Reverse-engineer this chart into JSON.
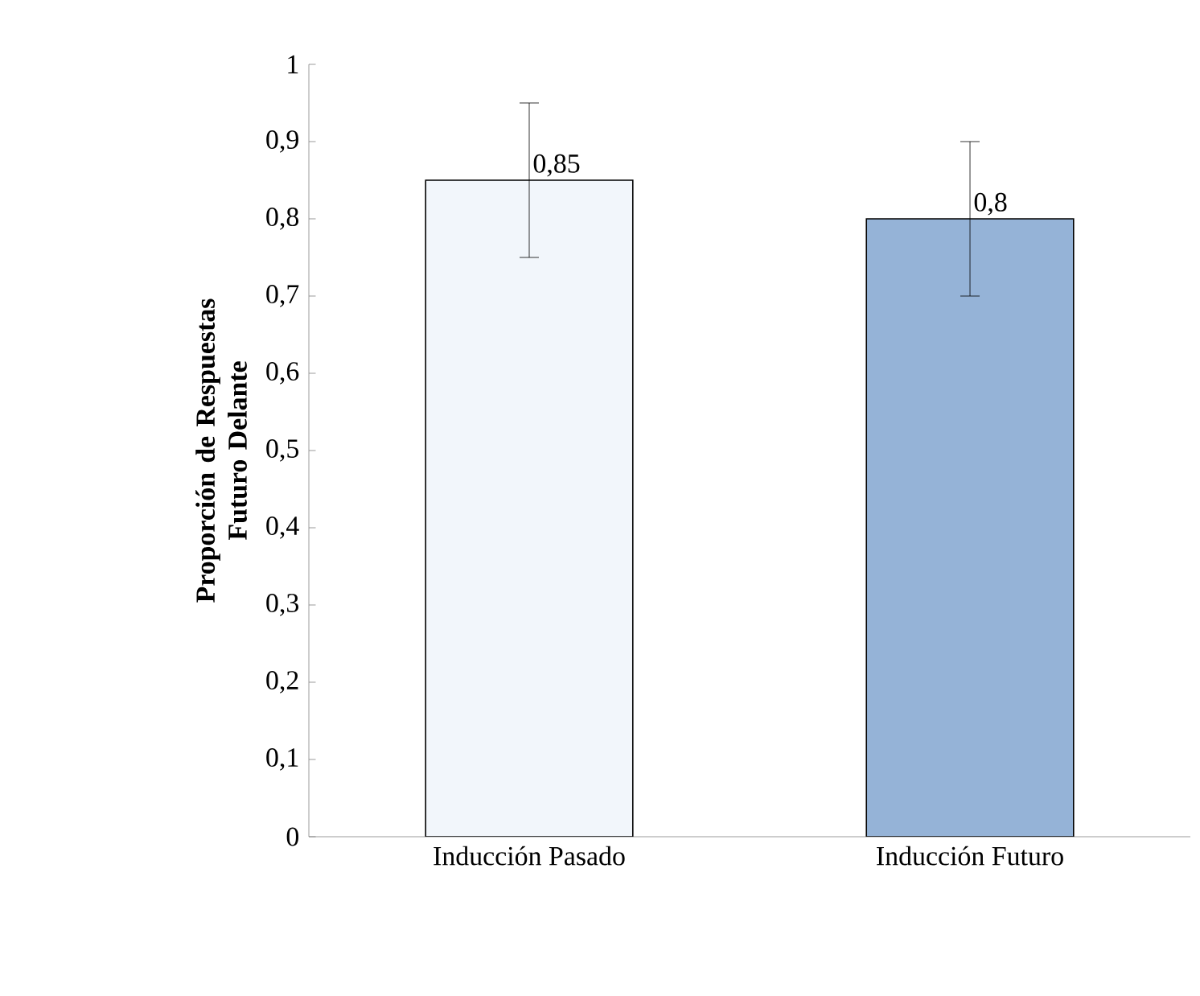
{
  "chart_data": {
    "type": "bar",
    "ylabel": "Proporción de Respuestas Futuro Delante",
    "categories": [
      "Inducción Pasado",
      "Inducción Futuro"
    ],
    "values": [
      0.85,
      0.8
    ],
    "colors": [
      "#f2f6fb",
      "#95b3d7"
    ],
    "errors": [
      0.1,
      0.1
    ],
    "value_labels": [
      "0,85",
      "0,8"
    ],
    "ylim": [
      0,
      1
    ],
    "yticks": [
      {
        "value": 0,
        "label": "0"
      },
      {
        "value": 0.1,
        "label": "0,1"
      },
      {
        "value": 0.2,
        "label": "0,2"
      },
      {
        "value": 0.3,
        "label": "0,3"
      },
      {
        "value": 0.4,
        "label": "0,4"
      },
      {
        "value": 0.5,
        "label": "0,5"
      },
      {
        "value": 0.6,
        "label": "0,6"
      },
      {
        "value": 0.7,
        "label": "0,7"
      },
      {
        "value": 0.8,
        "label": "0,8"
      },
      {
        "value": 0.9,
        "label": "0,9"
      },
      {
        "value": 1,
        "label": "1"
      }
    ]
  }
}
